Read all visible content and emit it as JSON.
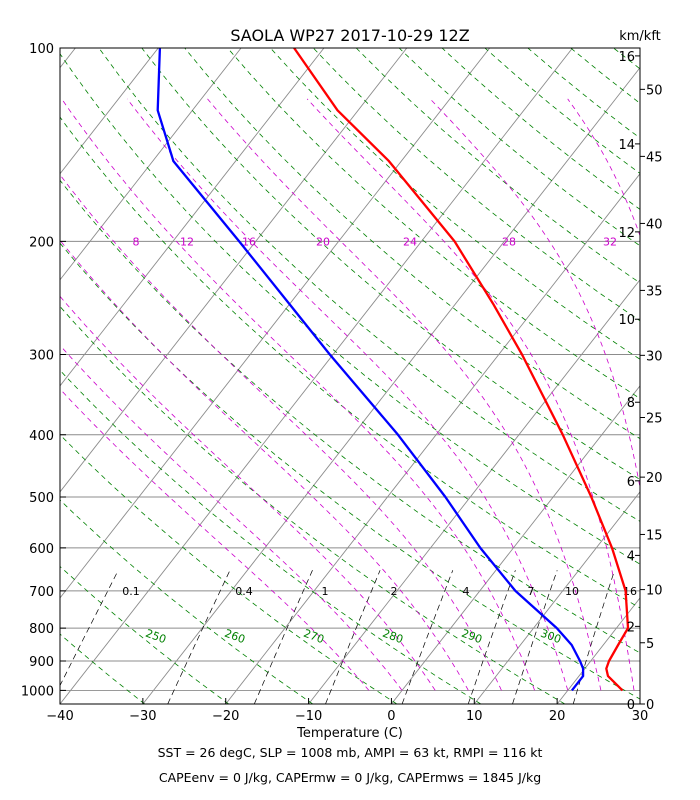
{
  "chart_data": {
    "type": "line",
    "chart_kind": "skew-T log-p diagram",
    "title": "SAOLA WP27 2017-10-29 12Z",
    "xlabel": "Temperature (C)",
    "right_axis_label": "km/kft",
    "x_ticks": [
      "−40",
      "−30",
      "−20",
      "−10",
      "0",
      "10",
      "20",
      "30"
    ],
    "x_tick_values": [
      -40,
      -30,
      -20,
      -10,
      0,
      10,
      20,
      30
    ],
    "pressure_ticks": [
      "100",
      "200",
      "300",
      "400",
      "500",
      "600",
      "700",
      "800",
      "900",
      "1000"
    ],
    "pressure_tick_values": [
      100,
      200,
      300,
      400,
      500,
      600,
      700,
      800,
      900,
      1000
    ],
    "xlim": [
      -40,
      30
    ],
    "ylim_pressure_hpa": [
      1050,
      100
    ],
    "y_scale": "log",
    "km_ticks": [
      {
        "label": "0",
        "value": 0
      },
      {
        "label": "2",
        "value": 2
      },
      {
        "label": "4",
        "value": 4
      },
      {
        "label": "6",
        "value": 6
      },
      {
        "label": "8",
        "value": 8
      },
      {
        "label": "10",
        "value": 10
      },
      {
        "label": "12",
        "value": 12
      },
      {
        "label": "14",
        "value": 14
      },
      {
        "label": "16",
        "value": 16
      }
    ],
    "kft_ticks": [
      {
        "label": "0",
        "value": 0
      },
      {
        "label": "5",
        "value": 5
      },
      {
        "label": "10",
        "value": 10
      },
      {
        "label": "15",
        "value": 15
      },
      {
        "label": "20",
        "value": 20
      },
      {
        "label": "25",
        "value": 25
      },
      {
        "label": "30",
        "value": 30
      },
      {
        "label": "35",
        "value": 35
      },
      {
        "label": "40",
        "value": 40
      },
      {
        "label": "45",
        "value": 45
      },
      {
        "label": "50",
        "value": 50
      }
    ],
    "isobar_grid": true,
    "isotherm_grid": true,
    "series": [
      {
        "color": "#ff0000",
        "points": [
          {
            "p": 1000,
            "t": 26.6
          },
          {
            "p": 950,
            "t": 23.5
          },
          {
            "p": 925,
            "t": 22.6
          },
          {
            "p": 900,
            "t": 22.2
          },
          {
            "p": 850,
            "t": 21.8
          },
          {
            "p": 800,
            "t": 21.4
          },
          {
            "p": 700,
            "t": 17.6
          },
          {
            "p": 600,
            "t": 11.9
          },
          {
            "p": 500,
            "t": 4.6
          },
          {
            "p": 400,
            "t": -4.7
          },
          {
            "p": 300,
            "t": -17.2
          },
          {
            "p": 250,
            "t": -25.5
          },
          {
            "p": 200,
            "t": -36.0
          },
          {
            "p": 150,
            "t": -51.5
          },
          {
            "p": 125,
            "t": -62.5
          },
          {
            "p": 100,
            "t": -73.6
          }
        ]
      },
      {
        "color": "#0000ff",
        "points": [
          {
            "p": 1000,
            "t": 20.5
          },
          {
            "p": 950,
            "t": 20.5
          },
          {
            "p": 925,
            "t": 19.8
          },
          {
            "p": 900,
            "t": 18.7
          },
          {
            "p": 850,
            "t": 16.2
          },
          {
            "p": 800,
            "t": 12.8
          },
          {
            "p": 700,
            "t": 4.3
          },
          {
            "p": 600,
            "t": -4.0
          },
          {
            "p": 500,
            "t": -13.0
          },
          {
            "p": 400,
            "t": -24.6
          },
          {
            "p": 300,
            "t": -40.4
          },
          {
            "p": 250,
            "t": -50.1
          },
          {
            "p": 200,
            "t": -62.0
          },
          {
            "p": 150,
            "t": -77.5
          },
          {
            "p": 125,
            "t": -84.2
          },
          {
            "p": 100,
            "t": -89.8
          }
        ]
      }
    ],
    "dry_adiabats": {
      "color": "#008000",
      "labeled": [
        {
          "label": "250",
          "value": 250
        },
        {
          "label": "260",
          "value": 260
        },
        {
          "label": "270",
          "value": 270
        },
        {
          "label": "280",
          "value": 280
        },
        {
          "label": "290",
          "value": 290
        },
        {
          "label": "300",
          "value": 300
        }
      ],
      "all_thetas_k": [
        190,
        200,
        210,
        220,
        230,
        240,
        250,
        260,
        270,
        280,
        290,
        300,
        310,
        320,
        330,
        340,
        350,
        360,
        370,
        380,
        390,
        400,
        410,
        420,
        430,
        440,
        450,
        460
      ]
    },
    "moist_adiabats": {
      "color": "#cc00cc",
      "labels_at_200hpa": [
        {
          "label": "8",
          "value": 8
        },
        {
          "label": "12",
          "value": 12
        },
        {
          "label": "16",
          "value": 16
        },
        {
          "label": "20",
          "value": 20
        },
        {
          "label": "24",
          "value": 24
        },
        {
          "label": "28",
          "value": 28
        },
        {
          "label": "32",
          "value": 32
        }
      ],
      "all_thetaw_c": [
        -4,
        0,
        4,
        8,
        12,
        16,
        20,
        24,
        28,
        32,
        36
      ]
    },
    "mixing_ratio_lines": {
      "color": "#000000",
      "labels_at_700hpa": [
        {
          "label": "0.1",
          "value": 0.1
        },
        {
          "label": "0.4",
          "value": 0.4
        },
        {
          "label": "1",
          "value": 1
        },
        {
          "label": "2",
          "value": 2
        },
        {
          "label": "4",
          "value": 4
        },
        {
          "label": "7",
          "value": 7
        },
        {
          "label": "10",
          "value": 10
        },
        {
          "label": "16",
          "value": 16
        }
      ]
    },
    "annotations": [
      "SST = 26 degC, SLP = 1008 mb, AMPI = 63 kt, RMPI = 116 kt",
      "CAPEenv = 0 J/kg, CAPErmw = 0 J/kg, CAPErmws = 1845 J/kg"
    ]
  }
}
